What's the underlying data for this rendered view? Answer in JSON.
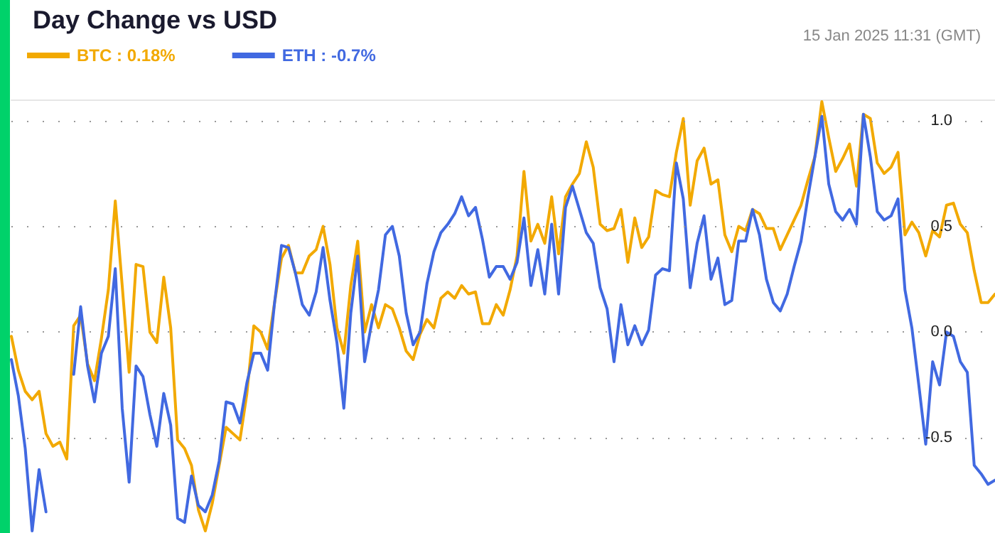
{
  "chart_data": {
    "type": "line",
    "title": "Day Change vs USD",
    "annotations": [
      "15 Jan 2025 11:31 (GMT)"
    ],
    "categories": [
      null,
      null,
      null,
      null,
      null,
      null,
      null,
      null,
      null,
      null,
      null,
      null,
      null,
      null,
      null,
      null,
      null,
      null,
      null,
      null,
      null,
      null,
      null,
      null,
      null,
      null,
      null,
      null,
      null,
      null,
      null,
      null,
      null,
      null,
      null,
      null,
      null,
      null,
      null,
      null,
      null,
      null,
      null,
      null,
      null,
      null,
      null,
      null,
      null,
      null,
      null,
      null,
      null,
      null,
      null,
      null,
      null,
      null,
      null,
      null,
      null,
      null,
      null,
      null,
      null,
      null,
      null,
      null,
      null,
      null,
      null,
      null,
      null,
      null,
      null,
      null,
      null,
      null,
      null,
      null,
      null,
      null,
      null,
      null,
      null,
      null,
      null,
      null,
      null,
      null,
      null,
      null,
      null,
      null,
      null,
      null,
      null,
      null,
      null,
      null,
      null,
      null,
      null,
      null,
      null,
      null,
      null,
      null,
      null,
      null,
      null,
      null,
      null,
      null,
      null,
      null,
      null,
      null,
      null,
      null,
      null,
      null,
      null,
      null,
      null,
      null,
      null,
      null,
      null,
      null,
      null,
      null,
      null,
      null,
      null,
      null,
      null,
      null,
      null,
      null,
      null,
      null,
      null
    ],
    "series": [
      {
        "name": "BTC : 0.18%",
        "color": "#f2a900",
        "values": [
          -0.02,
          -0.18,
          -0.28,
          -0.32,
          -0.28,
          -0.48,
          -0.54,
          -0.52,
          -0.6,
          0.03,
          0.08,
          -0.15,
          -0.23,
          -0.03,
          0.2,
          0.62,
          0.22,
          -0.19,
          0.32,
          0.31,
          0.0,
          -0.05,
          0.26,
          0.02,
          -0.51,
          -0.55,
          -0.63,
          -0.84,
          -0.94,
          -0.81,
          -0.63,
          -0.45,
          -0.48,
          -0.51,
          -0.29,
          0.03,
          0.0,
          -0.08,
          0.14,
          0.35,
          0.41,
          0.28,
          0.28,
          0.36,
          0.39,
          0.5,
          0.32,
          0.02,
          -0.1,
          0.22,
          0.43,
          0.0,
          0.13,
          0.02,
          0.13,
          0.11,
          0.02,
          -0.09,
          -0.13,
          -0.01,
          0.06,
          0.02,
          0.16,
          0.19,
          0.16,
          0.22,
          0.18,
          0.19,
          0.04,
          0.04,
          0.13,
          0.08,
          0.2,
          0.36,
          0.76,
          0.43,
          0.51,
          0.42,
          0.64,
          0.37,
          0.64,
          0.7,
          0.75,
          0.9,
          0.78,
          0.51,
          0.48,
          0.49,
          0.58,
          0.33,
          0.54,
          0.4,
          0.45,
          0.67,
          0.65,
          0.64,
          0.85,
          1.01,
          0.6,
          0.81,
          0.87,
          0.7,
          0.72,
          0.46,
          0.38,
          0.5,
          0.48,
          0.58,
          0.56,
          0.49,
          0.49,
          0.39,
          0.46,
          0.53,
          0.6,
          0.72,
          0.83,
          1.09,
          0.92,
          0.76,
          0.82,
          0.89,
          0.69,
          1.03,
          1.01,
          0.8,
          0.75,
          0.78,
          0.85,
          0.46,
          0.52,
          0.47,
          0.36,
          0.48,
          0.45,
          0.6,
          0.61,
          0.51,
          0.47,
          0.29,
          0.14,
          0.14,
          0.18
        ]
      },
      {
        "name": "ETH : -0.7%",
        "color": "#4169e1",
        "values": [
          -0.13,
          -0.3,
          -0.55,
          -0.94,
          -0.65,
          -0.85,
          null,
          null,
          null,
          -0.2,
          0.12,
          -0.16,
          -0.33,
          -0.1,
          -0.02,
          0.3,
          -0.36,
          -0.71,
          -0.16,
          -0.21,
          -0.39,
          -0.54,
          -0.29,
          -0.44,
          -0.88,
          -0.9,
          -0.68,
          -0.82,
          -0.85,
          -0.77,
          -0.61,
          -0.33,
          -0.34,
          -0.43,
          -0.24,
          -0.1,
          -0.1,
          -0.18,
          0.14,
          0.41,
          0.4,
          0.28,
          0.13,
          0.08,
          0.19,
          0.4,
          0.15,
          -0.05,
          -0.36,
          0.09,
          0.36,
          -0.14,
          0.04,
          0.2,
          0.46,
          0.5,
          0.36,
          0.09,
          -0.06,
          0.0,
          0.23,
          0.38,
          0.47,
          0.51,
          0.56,
          0.64,
          0.55,
          0.59,
          0.44,
          0.26,
          0.31,
          0.31,
          0.25,
          0.33,
          0.54,
          0.22,
          0.39,
          0.18,
          0.51,
          0.18,
          0.59,
          0.69,
          0.58,
          0.47,
          0.42,
          0.21,
          0.11,
          -0.14,
          0.13,
          -0.06,
          0.03,
          -0.06,
          0.01,
          0.27,
          0.3,
          0.29,
          0.8,
          0.63,
          0.21,
          0.42,
          0.55,
          0.25,
          0.35,
          0.13,
          0.15,
          0.43,
          0.43,
          0.58,
          0.46,
          0.25,
          0.14,
          0.1,
          0.18,
          0.31,
          0.43,
          0.64,
          0.83,
          1.02,
          0.7,
          0.57,
          0.53,
          0.58,
          0.51,
          1.03,
          0.83,
          0.57,
          0.53,
          0.55,
          0.63,
          0.2,
          0.02,
          -0.25,
          -0.53,
          -0.14,
          -0.25,
          0.0,
          -0.02,
          -0.14,
          -0.19,
          -0.63,
          -0.67,
          -0.72,
          -0.7
        ]
      }
    ],
    "ylim": [
      -0.95,
      1.1
    ],
    "yticks": [
      {
        "value": -0.5,
        "label": "-0.5"
      },
      {
        "value": 0,
        "label": "0.0"
      },
      {
        "value": 0.5,
        "label": "0.5"
      },
      {
        "value": 1,
        "label": "1.0"
      }
    ],
    "grid": "y",
    "legend": "top left",
    "line_style": "solid"
  }
}
